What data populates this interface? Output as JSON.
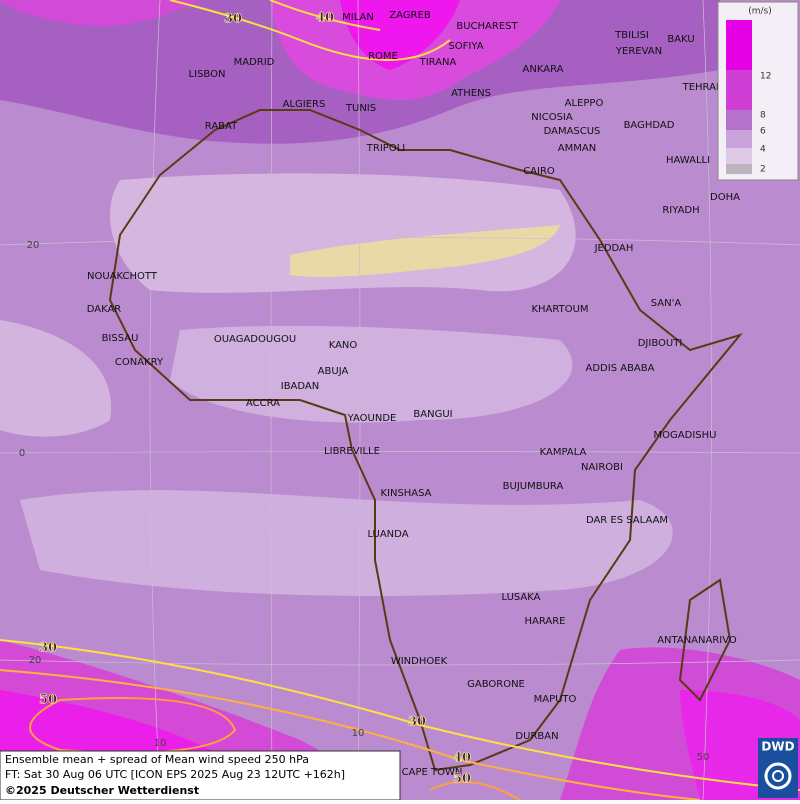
{
  "legend": {
    "unit": "(m/s)",
    "ticks": [
      12,
      8,
      6,
      4,
      2
    ]
  },
  "cities": [
    "MILAN",
    "ZAGREB",
    "BUCHAREST",
    "SOFIYA",
    "TBILISI",
    "BAKU",
    "YEREVAN",
    "LISBON",
    "MADRID",
    "ROME",
    "TIRANA",
    "ANKARA",
    "TEHRAN",
    "ALGIERS",
    "TUNIS",
    "ATHENS",
    "ALEPPO",
    "RABAT",
    "NICOSIA",
    "BAGHDAD",
    "DAMASCUS",
    "TRIPOLI",
    "AMMAN",
    "HAWALLI",
    "CAIRO",
    "DOHA",
    "RIYADH",
    "JEDDAH",
    "NOUAKCHOTT",
    "SAN'A",
    "KHARTOUM",
    "DAKAR",
    "BISSAU",
    "OUAGADOUGOU",
    "DJIBOUTI",
    "KANO",
    "CONAKRY",
    "ABUJA",
    "ADDIS ABABA",
    "IBADAN",
    "ACCRA",
    "YAOUNDE",
    "BANGUI",
    "MOGADISHU",
    "LIBREVILLE",
    "KAMPALA",
    "NAIROBI",
    "BUJUMBURA",
    "KINSHASA",
    "DAR ES SALAAM",
    "LUANDA",
    "LUSAKA",
    "HARARE",
    "ANTANANARIVO",
    "WINDHOEK",
    "GABORONE",
    "MAPUTO",
    "DURBAN",
    "CAPE TOWN"
  ],
  "contour_labels": [
    30,
    40,
    30,
    50,
    30,
    40,
    50
  ],
  "grid_labels": [
    20,
    0,
    20,
    0,
    10,
    10,
    50
  ],
  "footer": {
    "line1": "Ensemble mean + spread of Mean wind speed 250 hPa",
    "line2": "FT: Sat 30 Aug 06 UTC [ICON EPS 2025 Aug 23 12UTC +162h]",
    "copyright": "©2025 Deutscher Wetterdienst"
  },
  "logo": "DWD"
}
